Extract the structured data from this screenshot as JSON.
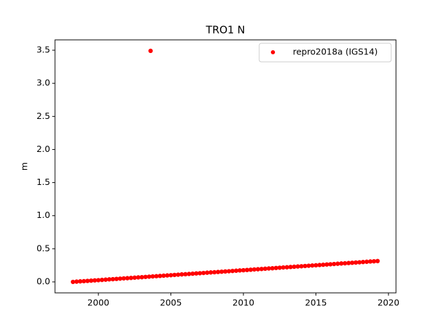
{
  "chart_data": {
    "type": "scatter",
    "title": "TRO1 N",
    "y_label": "m",
    "x": [
      1998.25,
      1998.5,
      1998.75,
      1999,
      1999.25,
      1999.5,
      1999.75,
      2000,
      2000.25,
      2000.5,
      2000.75,
      2001,
      2001.25,
      2001.5,
      2001.75,
      2002,
      2002.25,
      2002.5,
      2002.75,
      2003,
      2003.25,
      2003.5,
      2003.75,
      2004,
      2004.25,
      2004.5,
      2004.75,
      2005,
      2005.25,
      2005.5,
      2005.75,
      2006,
      2006.25,
      2006.5,
      2006.75,
      2007,
      2007.25,
      2007.5,
      2007.75,
      2008,
      2008.25,
      2008.5,
      2008.75,
      2009,
      2009.25,
      2009.5,
      2009.75,
      2010,
      2010.25,
      2010.5,
      2010.75,
      2011,
      2011.25,
      2011.5,
      2011.75,
      2012,
      2012.25,
      2012.5,
      2012.75,
      2013,
      2013.25,
      2013.5,
      2013.75,
      2014,
      2014.25,
      2014.5,
      2014.75,
      2015,
      2015.25,
      2015.5,
      2015.75,
      2016,
      2016.25,
      2016.5,
      2016.75,
      2017,
      2017.25,
      2017.5,
      2017.75,
      2018,
      2018.25,
      2018.5,
      2018.75,
      2019,
      2019.25,
      2003.6
    ],
    "series": [
      {
        "name": "repro2018a (IGS14)",
        "color": "#ff0000",
        "values": [
          0,
          0.004,
          0.008,
          0.011,
          0.015,
          0.019,
          0.023,
          0.026,
          0.03,
          0.034,
          0.038,
          0.041,
          0.045,
          0.049,
          0.053,
          0.056,
          0.06,
          0.064,
          0.068,
          0.071,
          0.075,
          0.079,
          0.083,
          0.086,
          0.09,
          0.094,
          0.098,
          0.101,
          0.105,
          0.109,
          0.113,
          0.116,
          0.12,
          0.124,
          0.128,
          0.131,
          0.135,
          0.139,
          0.143,
          0.146,
          0.15,
          0.154,
          0.158,
          0.161,
          0.165,
          0.169,
          0.173,
          0.176,
          0.18,
          0.184,
          0.188,
          0.191,
          0.195,
          0.199,
          0.203,
          0.206,
          0.21,
          0.214,
          0.218,
          0.221,
          0.225,
          0.229,
          0.233,
          0.236,
          0.24,
          0.244,
          0.248,
          0.251,
          0.255,
          0.259,
          0.263,
          0.266,
          0.27,
          0.274,
          0.278,
          0.281,
          0.285,
          0.289,
          0.293,
          0.296,
          0.3,
          0.304,
          0.308,
          0.311,
          0.315,
          3.49
        ]
      }
    ],
    "xlim": [
      1997.01,
      2020.52
    ],
    "xticks": [
      2000,
      2005,
      2010,
      2015,
      2020
    ],
    "ylim": [
      -0.166,
      3.656
    ],
    "yticks": [
      {
        "value": 0,
        "label": "0.0"
      },
      {
        "value": 0.5,
        "label": "0.5"
      },
      {
        "value": 1,
        "label": "1.0"
      },
      {
        "value": 1.5,
        "label": "1.5"
      },
      {
        "value": 2,
        "label": "2.0"
      },
      {
        "value": 2.5,
        "label": "2.5"
      },
      {
        "value": 3,
        "label": "3.0"
      },
      {
        "value": 3.5,
        "label": "3.5"
      }
    ],
    "legend": "upper right"
  }
}
